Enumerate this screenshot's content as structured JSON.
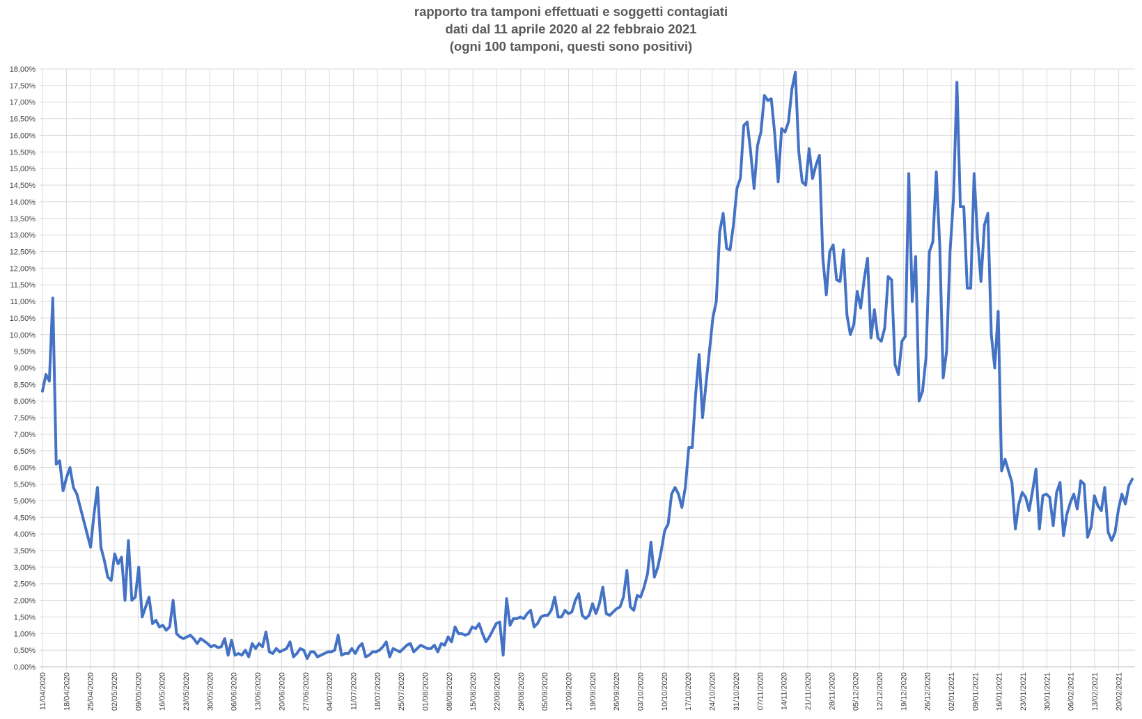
{
  "chart_data": {
    "type": "line",
    "title": "rapporto tra tamponi effettuati e soggetti contagiati",
    "subtitle": [
      "dati dal 11 aprile 2020 al 22 febbraio 2021",
      "(ogni 100 tamponi, questi sono positivi)"
    ],
    "xlabel": "",
    "ylabel": "",
    "ylim": [
      0,
      18
    ],
    "y_tick_step": 0.5,
    "grid": true,
    "legend": "none",
    "x_tick_labels": [
      "11/04/2020",
      "18/04/2020",
      "25/04/2020",
      "02/05/2020",
      "09/05/2020",
      "16/05/2020",
      "23/05/2020",
      "30/05/2020",
      "06/06/2020",
      "13/06/2020",
      "20/06/2020",
      "27/06/2020",
      "04/07/2020",
      "11/07/2020",
      "18/07/2020",
      "25/07/2020",
      "01/08/2020",
      "08/08/2020",
      "15/08/2020",
      "22/08/2020",
      "29/08/2020",
      "05/09/2020",
      "12/09/2020",
      "19/09/2020",
      "26/09/2020",
      "03/10/2020",
      "10/10/2020",
      "17/10/2020",
      "24/10/2020",
      "31/10/2020",
      "07/11/2020",
      "14/11/2020",
      "21/11/2020",
      "28/11/2020",
      "05/12/2020",
      "12/12/2020",
      "19/12/2020",
      "26/12/2020",
      "02/01/2021",
      "09/01/2021",
      "16/01/2021",
      "23/01/2021",
      "30/01/2021",
      "06/02/2021",
      "13/02/2021",
      "20/02/2021"
    ],
    "series": [
      {
        "color": "#4472c4",
        "start_date": "2020-04-11",
        "values": [
          8.3,
          8.8,
          8.6,
          11.1,
          6.1,
          6.2,
          5.3,
          5.7,
          6.0,
          5.4,
          5.2,
          4.8,
          4.4,
          4.0,
          3.6,
          4.6,
          5.4,
          3.6,
          3.2,
          2.7,
          2.6,
          3.4,
          3.1,
          3.3,
          2.0,
          3.8,
          2.0,
          2.1,
          3.0,
          1.5,
          1.8,
          2.1,
          1.3,
          1.4,
          1.2,
          1.25,
          1.1,
          1.2,
          2.0,
          1.0,
          0.9,
          0.85,
          0.9,
          0.95,
          0.85,
          0.7,
          0.85,
          0.78,
          0.7,
          0.6,
          0.65,
          0.58,
          0.6,
          0.85,
          0.35,
          0.8,
          0.35,
          0.4,
          0.35,
          0.5,
          0.3,
          0.7,
          0.55,
          0.7,
          0.6,
          1.05,
          0.45,
          0.4,
          0.55,
          0.45,
          0.5,
          0.55,
          0.75,
          0.3,
          0.4,
          0.55,
          0.5,
          0.25,
          0.45,
          0.45,
          0.3,
          0.35,
          0.4,
          0.45,
          0.45,
          0.5,
          0.95,
          0.35,
          0.4,
          0.4,
          0.55,
          0.4,
          0.6,
          0.7,
          0.3,
          0.35,
          0.45,
          0.45,
          0.5,
          0.6,
          0.75,
          0.3,
          0.55,
          0.5,
          0.45,
          0.55,
          0.65,
          0.7,
          0.45,
          0.55,
          0.65,
          0.6,
          0.55,
          0.55,
          0.65,
          0.45,
          0.7,
          0.65,
          0.9,
          0.75,
          1.2,
          1.0,
          1.0,
          0.95,
          1.0,
          1.2,
          1.15,
          1.3,
          1.0,
          0.75,
          0.9,
          1.1,
          1.3,
          1.35,
          0.35,
          2.05,
          1.25,
          1.45,
          1.45,
          1.5,
          1.45,
          1.6,
          1.7,
          1.2,
          1.3,
          1.5,
          1.55,
          1.55,
          1.7,
          2.1,
          1.5,
          1.5,
          1.7,
          1.6,
          1.65,
          2.0,
          2.2,
          1.55,
          1.45,
          1.55,
          1.9,
          1.6,
          1.9,
          2.4,
          1.6,
          1.55,
          1.65,
          1.75,
          1.8,
          2.1,
          2.9,
          1.8,
          1.7,
          2.15,
          2.1,
          2.4,
          2.8,
          3.75,
          2.7,
          3.0,
          3.5,
          4.1,
          4.3,
          5.2,
          5.4,
          5.2,
          4.8,
          5.4,
          6.6,
          6.6,
          8.2,
          9.4,
          7.5,
          8.5,
          9.5,
          10.5,
          11.0,
          13.1,
          13.65,
          12.6,
          12.55,
          13.3,
          14.4,
          14.7,
          16.3,
          16.4,
          15.5,
          14.4,
          15.7,
          16.1,
          17.2,
          17.05,
          17.1,
          16.05,
          14.6,
          16.2,
          16.1,
          16.4,
          17.4,
          17.9,
          15.5,
          14.6,
          14.5,
          15.6,
          14.7,
          15.1,
          15.4,
          12.3,
          11.2,
          12.5,
          12.7,
          11.65,
          11.6,
          12.55,
          10.6,
          10.0,
          10.3,
          11.3,
          10.8,
          11.65,
          12.3,
          9.9,
          10.75,
          9.9,
          9.8,
          10.2,
          11.75,
          11.65,
          9.1,
          8.8,
          9.8,
          9.95,
          14.85,
          11.0,
          12.35,
          8.0,
          8.3,
          9.3,
          12.5,
          12.8,
          14.9,
          12.7,
          8.7,
          9.5,
          12.5,
          14.1,
          17.6,
          13.85,
          13.85,
          11.4,
          11.4,
          14.85,
          12.9,
          11.6,
          13.3,
          13.65,
          10.0,
          9.0,
          10.7,
          5.9,
          6.25,
          5.9,
          5.55,
          4.15,
          4.9,
          5.25,
          5.1,
          4.7,
          5.3,
          5.95,
          4.15,
          5.15,
          5.2,
          5.1,
          4.25,
          5.25,
          5.55,
          3.95,
          4.6,
          4.95,
          5.2,
          4.75,
          5.6,
          5.5,
          3.9,
          4.2,
          5.15,
          4.85,
          4.7,
          5.4,
          4.05,
          3.8,
          4.05,
          4.75,
          5.2,
          4.9,
          5.45,
          5.65
        ]
      }
    ]
  }
}
